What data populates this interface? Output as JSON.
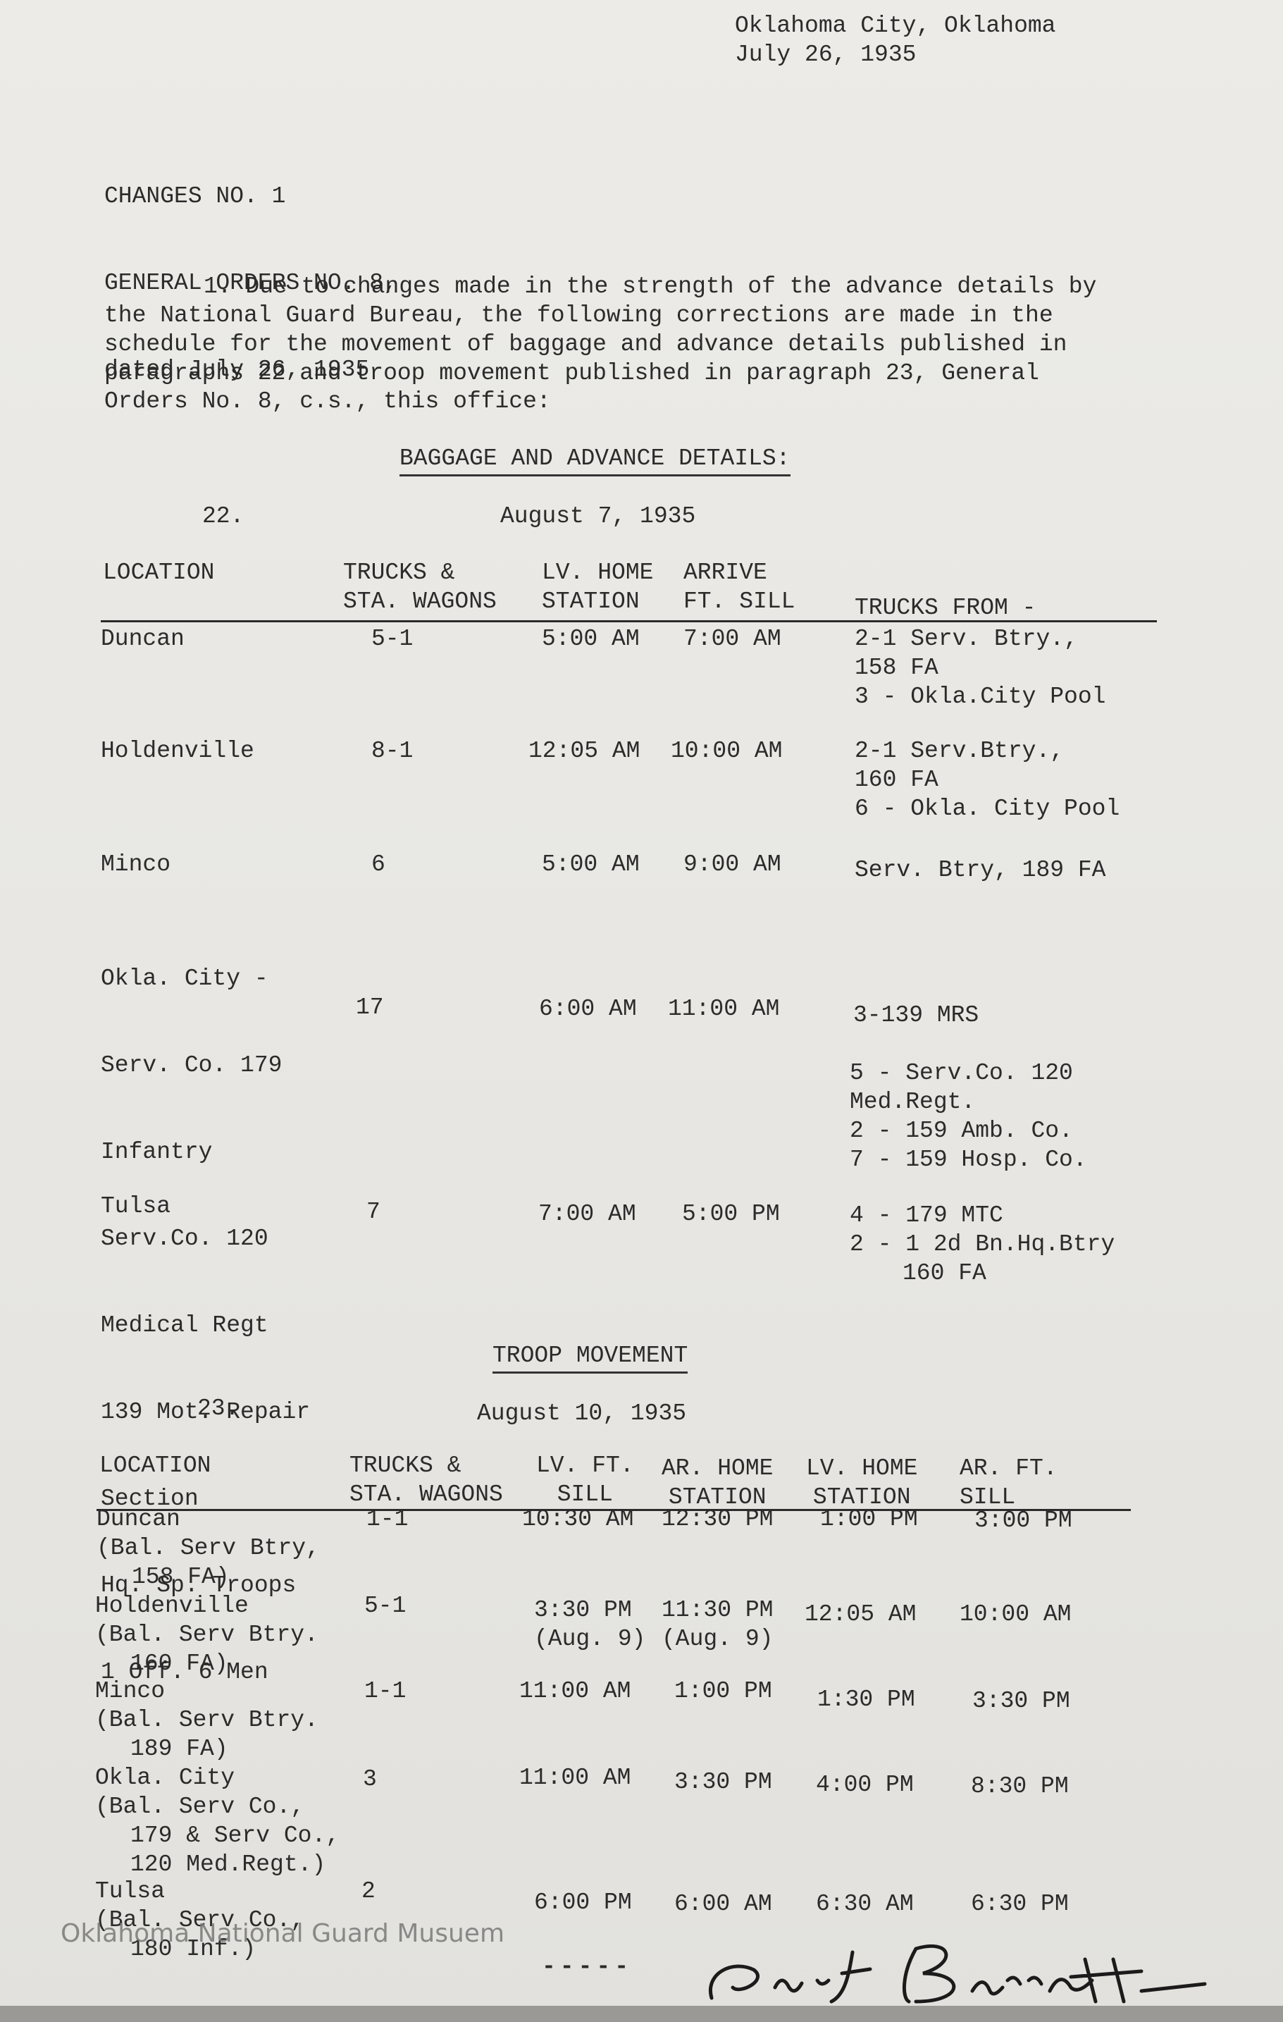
{
  "header": {
    "place": "Oklahoma City, Oklahoma",
    "date": "July 26, 1935"
  },
  "reference": [
    "CHANGES NO. 1",
    "GENERAL ORDERS NO. 8,",
    "dated July 26, 1935"
  ],
  "paragraph": [
    "1. Due to changes made in the strength of the advance details by",
    "the National Guard Bureau, the following corrections are made in the",
    "schedule for the movement of baggage and advance details published in",
    "paragraphs 22 and troop movement published in paragraph 23, General",
    "Orders No. 8, c.s., this office:"
  ],
  "baggage": {
    "title": "BAGGAGE AND ADVANCE DETAILS:",
    "number": "22.",
    "date": "August 7, 1935",
    "columns": [
      [
        "LOCATION"
      ],
      [
        "TRUCKS &",
        "STA. WAGONS"
      ],
      [
        "LV. HOME",
        "STATION"
      ],
      [
        "ARRIVE",
        "FT. SILL"
      ],
      [
        "TRUCKS FROM -"
      ]
    ],
    "rows": [
      {
        "location": [
          "Duncan"
        ],
        "trucks": "5-1",
        "leave": "5:00 AM",
        "arrive": "7:00 AM",
        "from": [
          "2-1 Serv. Btry.,",
          "158 FA",
          "3 - Okla.City Pool"
        ]
      },
      {
        "location": [
          "Holdenville"
        ],
        "trucks": "8-1",
        "leave": "12:05 AM",
        "arrive": "10:00 AM",
        "from": [
          "2-1 Serv.Btry.,",
          "160 FA",
          "6 - Okla. City Pool"
        ]
      },
      {
        "location": [
          "Minco"
        ],
        "trucks": "6",
        "leave": "5:00 AM",
        "arrive": "9:00 AM",
        "from": [
          "Serv. Btry, 189 FA"
        ]
      },
      {
        "location": [
          "Okla. City -",
          "Serv. Co. 179",
          "Infantry",
          "Serv.Co. 120",
          "Medical Regt",
          "139 Mot. Repair",
          "Section",
          "Hq. Sp. Troops",
          "1 Off. 6 Men"
        ],
        "trucks": "17",
        "leave": "6:00 AM",
        "arrive": "11:00 AM",
        "from": [
          "3-139 MRS",
          "5 - Serv.Co. 120",
          "Med.Regt.",
          "2 - 159 Amb. Co.",
          "7 - 159 Hosp. Co."
        ]
      },
      {
        "location": [
          "Tulsa"
        ],
        "trucks": "7",
        "leave": "7:00 AM",
        "arrive": "5:00 PM",
        "from": [
          "4 - 179 MTC",
          "2 - 1 2d Bn.Hq.Btry",
          "160 FA"
        ]
      }
    ]
  },
  "troop": {
    "title": "TROOP MOVEMENT",
    "number": "23.",
    "date": "August 10, 1935",
    "columns": [
      [
        "LOCATION"
      ],
      [
        "TRUCKS &",
        "STA. WAGONS"
      ],
      [
        "LV. FT.",
        "SILL"
      ],
      [
        "AR. HOME",
        "STATION"
      ],
      [
        "LV. HOME",
        "STATION"
      ],
      [
        "AR. FT.",
        "SILL"
      ]
    ],
    "rows": [
      {
        "location": [
          "Duncan",
          "(Bal. Serv Btry,",
          "158 FA)"
        ],
        "trucks": "1-1",
        "lv_ft_sill": [
          "10:30 AM"
        ],
        "ar_home": [
          "12:30 PM"
        ],
        "lv_home": "1:00 PM",
        "ar_ft_sill": "3:00 PM"
      },
      {
        "location": [
          "Holdenville",
          "(Bal. Serv Btry.",
          "160 FA)"
        ],
        "trucks": "5-1",
        "lv_ft_sill": [
          "3:30 PM",
          "(Aug. 9)"
        ],
        "ar_home": [
          "11:30 PM",
          "(Aug. 9)"
        ],
        "lv_home": "12:05 AM",
        "ar_ft_sill": "10:00 AM"
      },
      {
        "location": [
          "Minco",
          "(Bal. Serv Btry.",
          "189 FA)"
        ],
        "trucks": "1-1",
        "lv_ft_sill": [
          "11:00 AM"
        ],
        "ar_home": [
          "1:00 PM"
        ],
        "lv_home": "1:30 PM",
        "ar_ft_sill": "3:30 PM"
      },
      {
        "location": [
          "Okla. City",
          "(Bal. Serv Co.,",
          "179 & Serv Co.,",
          "120 Med.Regt.)"
        ],
        "trucks": "3",
        "lv_ft_sill": [
          "11:00 AM"
        ],
        "ar_home": [
          "3:30 PM"
        ],
        "lv_home": "4:00 PM",
        "ar_ft_sill": "8:30 PM"
      },
      {
        "location": [
          "Tulsa",
          "(Bal. Serv Co.,",
          "180 Inf.)"
        ],
        "trucks": "2",
        "lv_ft_sill": [
          "6:00 PM"
        ],
        "ar_home": [
          "6:00 AM"
        ],
        "lv_home": "6:30 AM",
        "ar_ft_sill": "6:30 PM"
      }
    ]
  },
  "footer": {
    "dashes": "-----",
    "watermark": "Oklahoma National Guard Musuem"
  }
}
